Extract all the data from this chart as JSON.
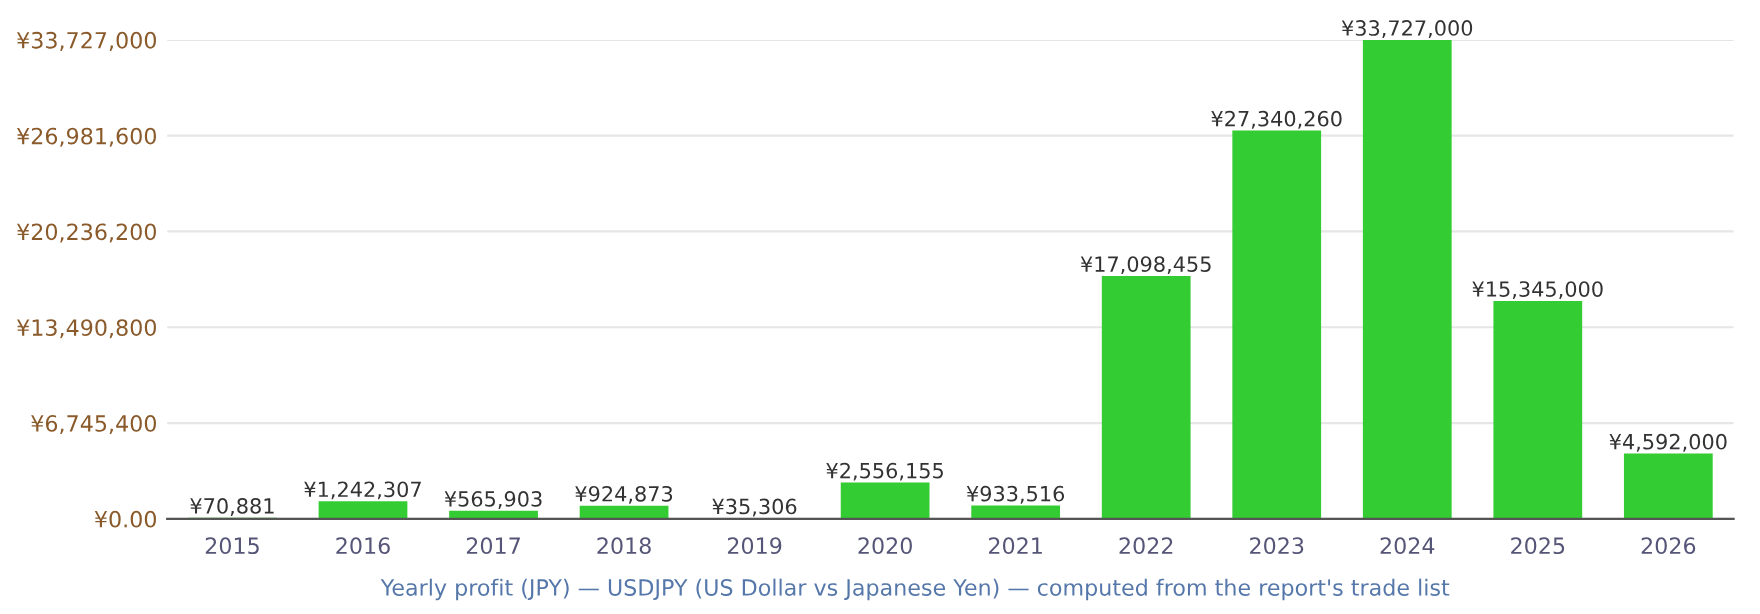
{
  "chart_data": {
    "type": "bar",
    "categories": [
      "2015",
      "2016",
      "2017",
      "2018",
      "2019",
      "2020",
      "2021",
      "2022",
      "2023",
      "2024",
      "2025",
      "2026"
    ],
    "values": [
      70881,
      1242307,
      565903,
      924873,
      35306,
      2556155,
      933516,
      17098455,
      27340260,
      33727000,
      15345000,
      4592000
    ],
    "value_labels": [
      "¥70,881",
      "¥1,242,307",
      "¥565,903",
      "¥924,873",
      "¥35,306",
      "¥2,556,155",
      "¥933,516",
      "¥17,098,455",
      "¥27,340,260",
      "¥33,727,000",
      "¥15,345,000",
      "¥4,592,000"
    ],
    "color": "#33cc33",
    "ylim": [
      0,
      33727000
    ],
    "yticks": [
      {
        "value": 0,
        "label": "¥0.00"
      },
      {
        "value": 6745400,
        "label": "¥6,745,400"
      },
      {
        "value": 13490800,
        "label": "¥13,490,800"
      },
      {
        "value": 20236200,
        "label": "¥20,236,200"
      },
      {
        "value": 26981600,
        "label": "¥26,981,600"
      },
      {
        "value": 33727000,
        "label": "¥33,727,000"
      }
    ],
    "grid": "y",
    "legend": false,
    "annotations": [
      "Yearly profit (JPY) — USDJPY (US Dollar vs Japanese Yen) — computed from the report's trade list"
    ]
  }
}
